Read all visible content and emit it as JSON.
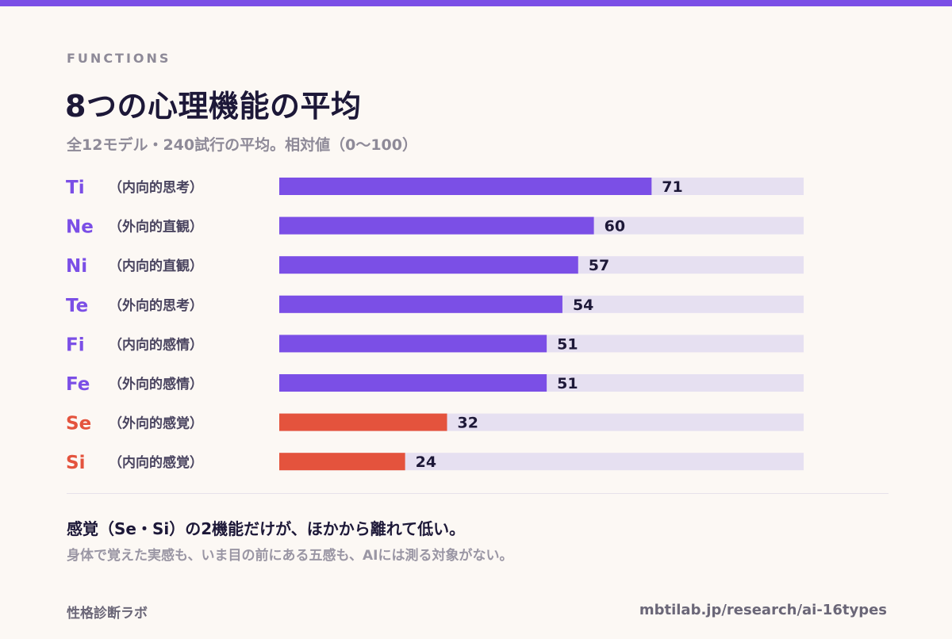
{
  "header": {
    "eyebrow": "FUNCTIONS",
    "title": "8つの心理機能の平均",
    "subtitle": "全12モデル・240試行の平均。相対値（0〜100）"
  },
  "colors": {
    "accent": "#7b4fe6",
    "sensing": "#e4533d",
    "track": "#e6e0f1",
    "ink": "#1d1838"
  },
  "chart_data": {
    "type": "bar",
    "orientation": "horizontal",
    "ylim": [
      0,
      100
    ],
    "categories": [
      {
        "code": "Ti",
        "name": "（内向的思考）",
        "value": 71,
        "group": "accent"
      },
      {
        "code": "Ne",
        "name": "（外向的直観）",
        "value": 60,
        "group": "accent"
      },
      {
        "code": "Ni",
        "name": "（内向的直観）",
        "value": 57,
        "group": "accent"
      },
      {
        "code": "Te",
        "name": "（外向的思考）",
        "value": 54,
        "group": "accent"
      },
      {
        "code": "Fi",
        "name": "（内向的感情）",
        "value": 51,
        "group": "accent"
      },
      {
        "code": "Fe",
        "name": "（外向的感情）",
        "value": 51,
        "group": "accent"
      },
      {
        "code": "Se",
        "name": "（外向的感覚）",
        "value": 32,
        "group": "sensing"
      },
      {
        "code": "Si",
        "name": "（内向的感覚）",
        "value": 24,
        "group": "sensing"
      }
    ]
  },
  "footer": {
    "conclusion": "感覚（Se・Si）の2機能だけが、ほかから離れて低い。",
    "note": "身体で覚えた実感も、いま目の前にある五感も、AIには測る対象がない。",
    "brand": "性格診断ラボ",
    "url": "mbtilab.jp/research/ai-16types"
  }
}
